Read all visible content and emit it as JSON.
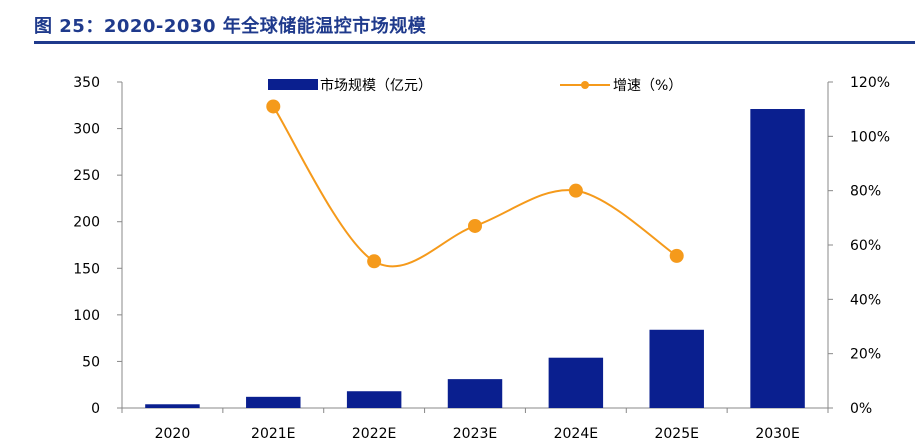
{
  "figure": {
    "title": "图 25：2020-2030 年全球储能温控市场规模"
  },
  "chart_data": {
    "type": "bar",
    "title": "图 25：2020-2030 年全球储能温控市场规模",
    "categories": [
      "2020",
      "2021E",
      "2022E",
      "2023E",
      "2024E",
      "2025E",
      "2030E"
    ],
    "series": [
      {
        "name": "市场规模（亿元）",
        "type": "bar",
        "axis": "left",
        "color": "#0a1f8f",
        "values": [
          4,
          12,
          18,
          31,
          54,
          84,
          321
        ]
      },
      {
        "name": "增速（%）",
        "type": "line",
        "axis": "right",
        "color": "#f59a1b",
        "values": [
          null,
          111,
          54,
          67,
          80,
          56,
          null
        ]
      }
    ],
    "y_left": {
      "min": 0,
      "max": 350,
      "step": 50,
      "ticks": [
        "0",
        "50",
        "100",
        "150",
        "200",
        "250",
        "300",
        "350"
      ]
    },
    "y_right": {
      "min": 0,
      "max": 120,
      "step": 20,
      "ticks": [
        "0%",
        "20%",
        "40%",
        "60%",
        "80%",
        "100%",
        "120%"
      ]
    },
    "xlabel": "",
    "ylabel": "",
    "grid": false,
    "legend": {
      "position": "top",
      "entries": [
        "市场规模（亿元）",
        "增速（%）"
      ]
    }
  }
}
